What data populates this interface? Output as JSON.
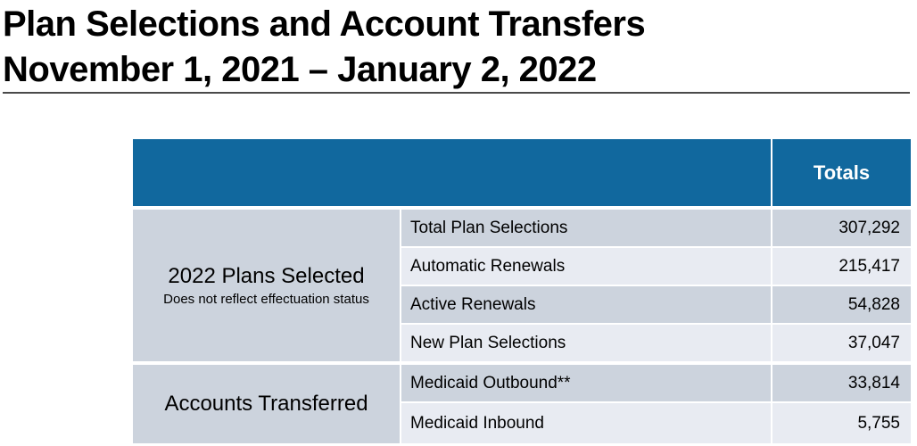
{
  "title": {
    "line1": "Plan Selections and Account Transfers",
    "line2": "November 1, 2021 – January 2, 2022"
  },
  "table": {
    "header": {
      "totals_label": "Totals"
    },
    "groups": [
      {
        "label": "2022 Plans Selected",
        "sublabel": "Does not reflect effectuation status",
        "rows": [
          {
            "label": "Total Plan Selections",
            "value": "307,292"
          },
          {
            "label": "Automatic Renewals",
            "value": "215,417"
          },
          {
            "label": "Active Renewals",
            "value": "54,828"
          },
          {
            "label": "New Plan Selections",
            "value": "37,047"
          }
        ]
      },
      {
        "label": "Accounts Transferred",
        "rows": [
          {
            "label": "Medicaid Outbound**",
            "value": "33,814"
          },
          {
            "label": "Medicaid Inbound",
            "value": "5,755"
          }
        ]
      }
    ]
  },
  "colors": {
    "header_bg": "#11689E",
    "row_dark": "#CCD3DD",
    "row_light": "#E8EBF2",
    "title_rule": "#4a4a4a"
  }
}
